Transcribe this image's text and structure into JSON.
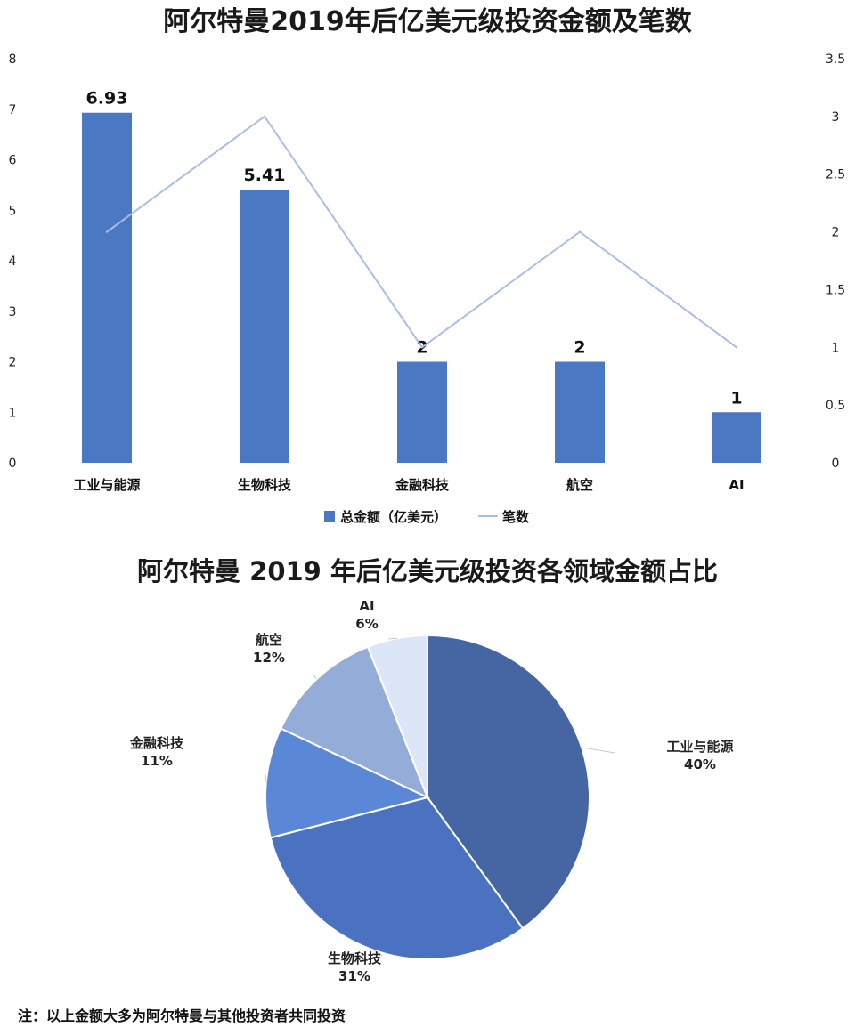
{
  "chart_data": [
    {
      "type": "bar",
      "title": "阿尔特曼2019年后亿美元级投资金额及笔数",
      "categories": [
        "工业与能源",
        "生物科技",
        "金融科技",
        "航空",
        "AI"
      ],
      "series": [
        {
          "name": "总金额（亿美元）",
          "type": "bar",
          "axis": "left",
          "values": [
            6.93,
            5.41,
            2,
            2,
            1
          ],
          "labels": [
            "6.93",
            "5.41",
            "2",
            "2",
            "1"
          ],
          "color": "#4a78c2"
        },
        {
          "name": "笔数",
          "type": "line",
          "axis": "right",
          "values": [
            2,
            3,
            1,
            2,
            1
          ],
          "color": "#a9bde6"
        }
      ],
      "yleft": {
        "range": [
          0,
          8
        ],
        "ticks": [
          "0",
          "1",
          "2",
          "3",
          "4",
          "5",
          "6",
          "7",
          "8"
        ]
      },
      "yright": {
        "range": [
          0,
          3.5
        ],
        "ticks": [
          "0",
          "0.5",
          "1",
          "1.5",
          "2",
          "2.5",
          "3",
          "3.5"
        ]
      },
      "grid": false,
      "legend": "bottom"
    },
    {
      "type": "pie",
      "title": "阿尔特曼 2019 年后亿美元级投资各领域金额占比",
      "slices": [
        {
          "label": "工业与能源",
          "percent_label": "40%",
          "value": 40,
          "color": "#4566a3"
        },
        {
          "label": "生物科技",
          "percent_label": "31%",
          "value": 31,
          "color": "#4a72c0"
        },
        {
          "label": "金融科技",
          "percent_label": "11%",
          "value": 11,
          "color": "#5a88d6"
        },
        {
          "label": "航空",
          "percent_label": "12%",
          "value": 12,
          "color": "#93acd8"
        },
        {
          "label": "AI",
          "percent_label": "6%",
          "value": 6,
          "color": "#dde6f6"
        }
      ]
    }
  ],
  "note": "注：以上金额大多为阿尔特曼与其他投资者共同投资"
}
